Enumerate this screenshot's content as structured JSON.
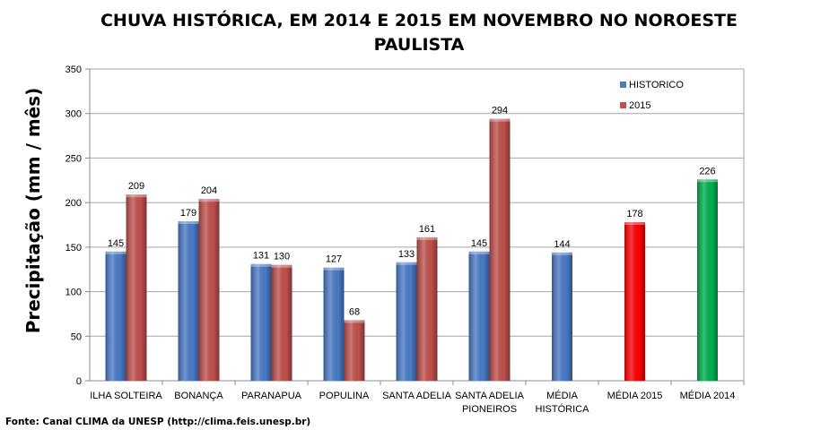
{
  "chart_data": {
    "type": "bar",
    "title_lines": [
      "CHUVA HISTÓRICA, EM 2014 E 2015 EM NOVEMBRO NO NOROESTE",
      "PAULISTA"
    ],
    "ylabel": "Precipitação (mm / mês)",
    "xlabel": "",
    "ylim": [
      0,
      350
    ],
    "yticks": [
      0,
      50,
      100,
      150,
      200,
      250,
      300,
      350
    ],
    "grid": true,
    "legend_position": "top-right",
    "legend": [
      {
        "name": "HISTORICO",
        "color": "#4a7bc8"
      },
      {
        "name": "2015",
        "color": "#c0504d"
      }
    ],
    "groups": [
      {
        "label": [
          "ILHA SOLTEIRA"
        ],
        "bars": [
          {
            "value": 145,
            "color": "#4a7bc8"
          },
          {
            "value": 209,
            "color": "#c0504d"
          }
        ]
      },
      {
        "label": [
          "BONANÇA"
        ],
        "bars": [
          {
            "value": 179,
            "color": "#4a7bc8"
          },
          {
            "value": 204,
            "color": "#c0504d"
          }
        ]
      },
      {
        "label": [
          "PARANAPUA"
        ],
        "bars": [
          {
            "value": 131,
            "color": "#4a7bc8"
          },
          {
            "value": 130,
            "color": "#c0504d"
          }
        ]
      },
      {
        "label": [
          "POPULINA"
        ],
        "bars": [
          {
            "value": 127,
            "color": "#4a7bc8"
          },
          {
            "value": 68,
            "color": "#c0504d"
          }
        ]
      },
      {
        "label": [
          "SANTA ADELIA"
        ],
        "bars": [
          {
            "value": 133,
            "color": "#4a7bc8"
          },
          {
            "value": 161,
            "color": "#c0504d"
          }
        ]
      },
      {
        "label": [
          "SANTA ADELIA",
          "PIONEIROS"
        ],
        "bars": [
          {
            "value": 145,
            "color": "#4a7bc8"
          },
          {
            "value": 294,
            "color": "#c0504d"
          }
        ]
      },
      {
        "label": [
          "MÉDIA",
          "HISTÓRICA"
        ],
        "bars": [
          {
            "value": 144,
            "color": "#4a7bc8"
          }
        ]
      },
      {
        "label": [
          "MÉDIA 2015"
        ],
        "bars": [
          {
            "value": 178,
            "color": "#ff0000"
          }
        ]
      },
      {
        "label": [
          "MÉDIA 2014"
        ],
        "bars": [
          {
            "value": 226,
            "color": "#00b050"
          }
        ]
      }
    ]
  },
  "source_note": "Fonte: Canal CLIMA da UNESP (http://clima.feis.unesp.br)"
}
